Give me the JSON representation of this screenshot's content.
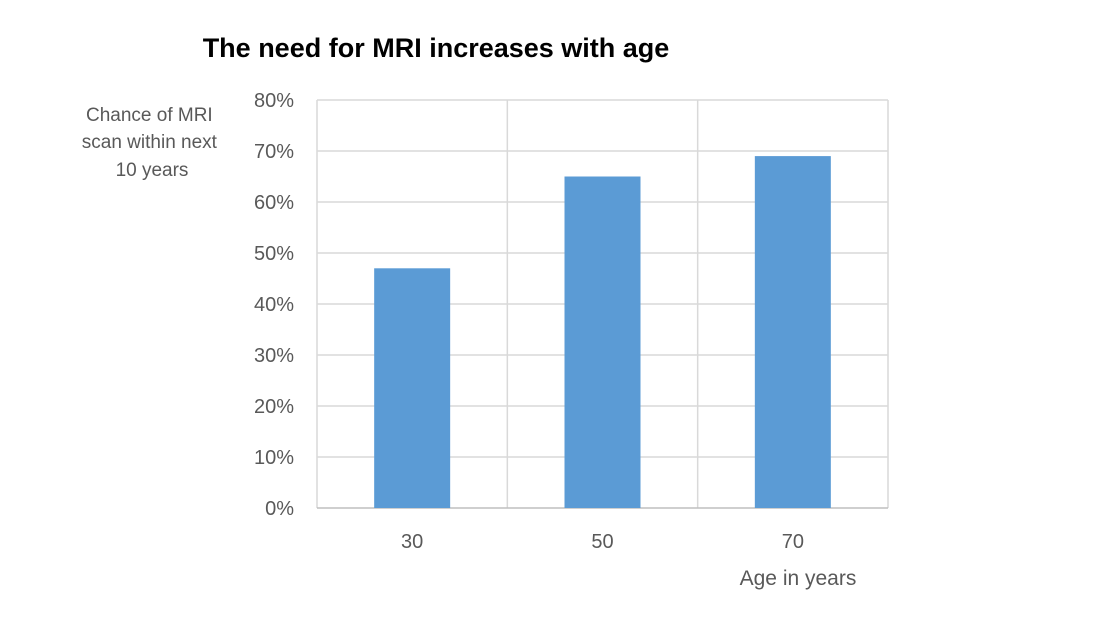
{
  "chart_data": {
    "type": "bar",
    "title": "The need for MRI increases with age",
    "ylabel_lines": [
      "Chance of MRI",
      "scan within next",
      "10 years"
    ],
    "xlabel": "Age in years",
    "categories": [
      "30",
      "50",
      "70"
    ],
    "values": [
      47,
      65,
      69
    ],
    "ylim": [
      0,
      80
    ],
    "y_ticks": [
      0,
      10,
      20,
      30,
      40,
      50,
      60,
      70,
      80
    ],
    "y_tick_labels": [
      "0%",
      "10%",
      "20%",
      "30%",
      "40%",
      "50%",
      "60%",
      "70%",
      "80%"
    ],
    "bar_color": "#5b9bd5",
    "grid": true,
    "vertical_grid": true
  }
}
